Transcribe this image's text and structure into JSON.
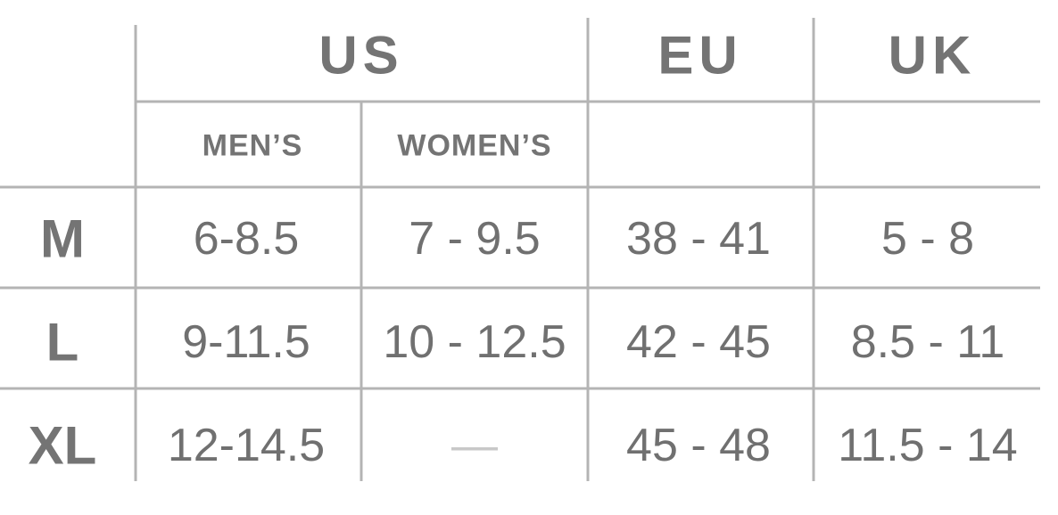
{
  "header": {
    "groups": [
      "US",
      "EU",
      "UK"
    ],
    "subcolumns": [
      "MEN’S",
      "WOMEN’S"
    ]
  },
  "rows": [
    {
      "label": "M",
      "cells": [
        "6-8.5",
        "7 - 9.5",
        "38 - 41",
        "5 - 8"
      ]
    },
    {
      "label": "L",
      "cells": [
        "9-11.5",
        "10 - 12.5",
        "42 - 45",
        "8.5 - 11"
      ]
    },
    {
      "label": "XL",
      "cells": [
        "12-14.5",
        "—",
        "45 - 48",
        "11.5 - 14"
      ]
    }
  ]
}
